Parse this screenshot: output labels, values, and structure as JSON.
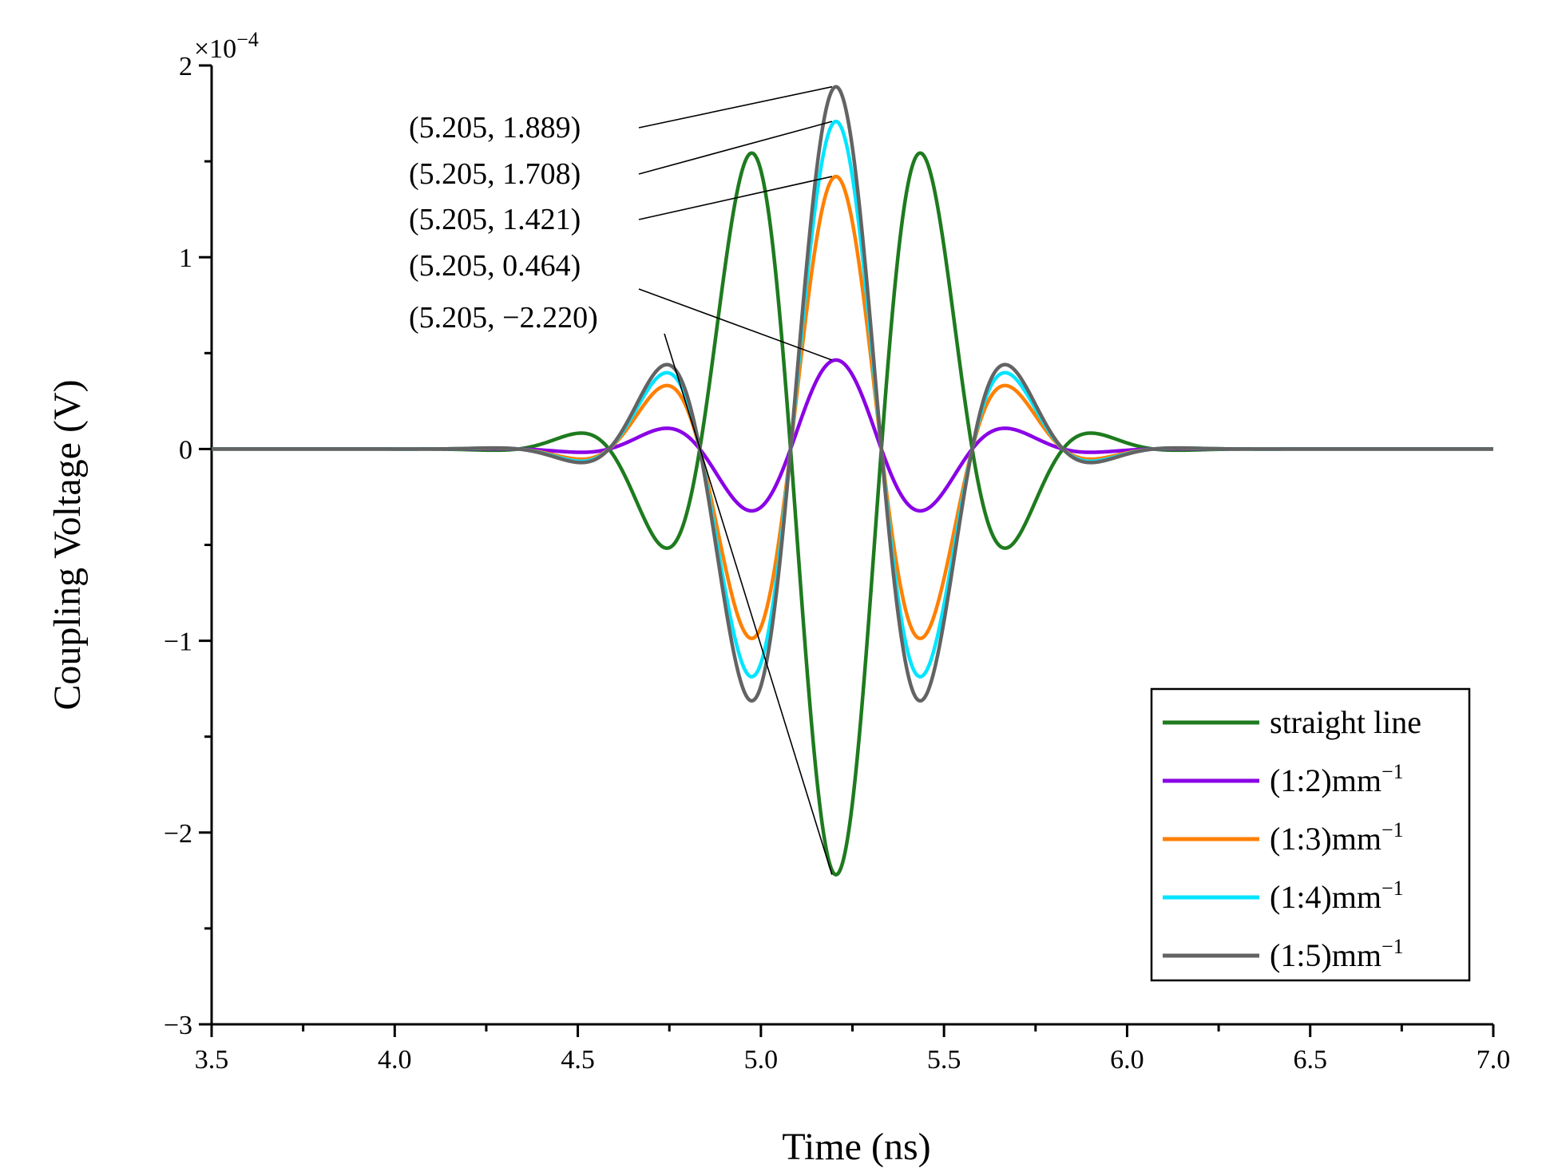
{
  "chart_data": {
    "type": "line",
    "title": "",
    "xlabel": "Time (ns)",
    "ylabel": "Coupling Voltage (V)",
    "y_multiplier": "×10",
    "y_multiplier_exp": "−4",
    "xlim": [
      3.5,
      7.0
    ],
    "ylim": [
      -3,
      2
    ],
    "x_ticks": [
      3.5,
      4.0,
      4.5,
      5.0,
      5.5,
      6.0,
      6.5,
      7.0
    ],
    "x_tick_labels": [
      "3.5",
      "4.0",
      "4.5",
      "5.0",
      "5.5",
      "6.0",
      "6.5",
      "7.0"
    ],
    "y_ticks": [
      -3,
      -2,
      -1,
      0,
      1,
      2
    ],
    "y_tick_labels": [
      "−3",
      "−2",
      "−1",
      "0",
      "1",
      "2"
    ],
    "center_time": 5.205,
    "legend_position": "bottom-right",
    "series": [
      {
        "name": "straight line",
        "unit_sup": "",
        "color": "#1e7b1e",
        "peak": -2.22,
        "order": 0
      },
      {
        "name": "(1:2)mm",
        "unit_sup": "−1",
        "color": "#8a00e6",
        "peak": 0.464,
        "order": 1
      },
      {
        "name": "(1:3)mm",
        "unit_sup": "−1",
        "color": "#ff8000",
        "peak": 1.421,
        "order": 2
      },
      {
        "name": "(1:4)mm",
        "unit_sup": "−1",
        "color": "#00e5ff",
        "peak": 1.708,
        "order": 3
      },
      {
        "name": "(1:5)mm",
        "unit_sup": "−1",
        "color": "#636363",
        "peak": 1.889,
        "order": 4
      }
    ],
    "annotations": [
      {
        "text": "(5.205, 1.889)",
        "x": 5.205,
        "y": 1.889
      },
      {
        "text": "(5.205, 1.708)",
        "x": 5.205,
        "y": 1.708
      },
      {
        "text": "(5.205, 1.421)",
        "x": 5.205,
        "y": 1.421
      },
      {
        "text": "(5.205, 0.464)",
        "x": 5.205,
        "y": 0.464
      },
      {
        "text": "(5.205, −2.220)",
        "x": 5.205,
        "y": -2.22
      }
    ]
  }
}
